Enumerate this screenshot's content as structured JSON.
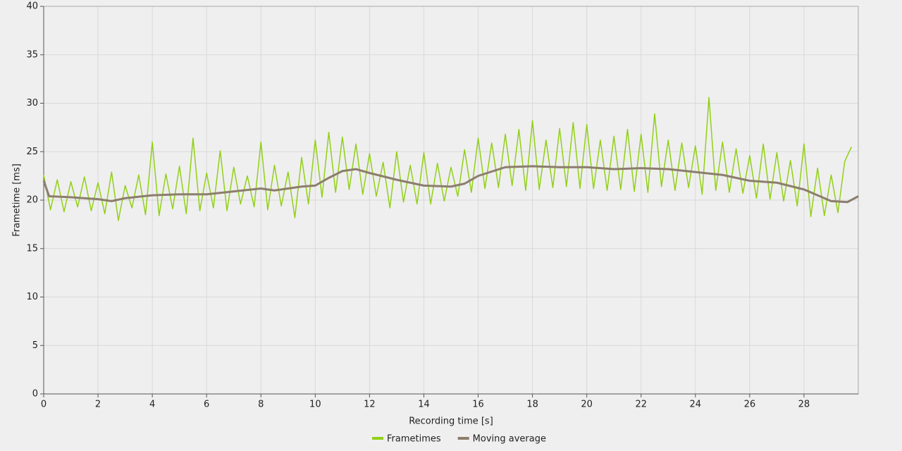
{
  "chart_data": {
    "type": "line",
    "x_label": "Recording time [s]",
    "y_label": "Frametime [ms]",
    "xlim": [
      0,
      30
    ],
    "xticks": [
      0,
      2,
      4,
      6,
      8,
      10,
      12,
      14,
      16,
      18,
      20,
      22,
      24,
      26,
      28
    ],
    "ylim": [
      0,
      40
    ],
    "yticks": [
      0,
      5,
      10,
      15,
      20,
      25,
      30,
      35,
      40
    ],
    "grid": true,
    "legend": "bottom",
    "series": [
      {
        "name": "Frametimes",
        "color": "#92d016",
        "width": 1.5,
        "x": [
          0,
          0.25,
          0.5,
          0.75,
          1,
          1.25,
          1.5,
          1.75,
          2,
          2.25,
          2.5,
          2.75,
          3,
          3.25,
          3.5,
          3.75,
          4,
          4.25,
          4.5,
          4.75,
          5,
          5.25,
          5.5,
          5.75,
          6,
          6.25,
          6.5,
          6.75,
          7,
          7.25,
          7.5,
          7.75,
          8,
          8.25,
          8.5,
          8.75,
          9,
          9.25,
          9.5,
          9.75,
          10,
          10.25,
          10.5,
          10.75,
          11,
          11.25,
          11.5,
          11.75,
          12,
          12.25,
          12.5,
          12.75,
          13,
          13.25,
          13.5,
          13.75,
          14,
          14.25,
          14.5,
          14.75,
          15,
          15.25,
          15.5,
          15.75,
          16,
          16.25,
          16.5,
          16.75,
          17,
          17.25,
          17.5,
          17.75,
          18,
          18.25,
          18.5,
          18.75,
          19,
          19.25,
          19.5,
          19.75,
          20,
          20.25,
          20.5,
          20.75,
          21,
          21.25,
          21.5,
          21.75,
          22,
          22.25,
          22.5,
          22.75,
          23,
          23.25,
          23.5,
          23.75,
          24,
          24.25,
          24.5,
          24.75,
          25,
          25.25,
          25.5,
          25.75,
          26,
          26.25,
          26.5,
          26.75,
          27,
          27.25,
          27.5,
          27.75,
          28,
          28.25,
          28.5,
          28.75,
          29,
          29.25,
          29.5,
          29.75
        ],
        "values": [
          22.6,
          19.0,
          22.1,
          18.8,
          21.9,
          19.3,
          22.4,
          18.9,
          21.8,
          18.6,
          22.9,
          17.9,
          21.5,
          19.2,
          22.6,
          18.5,
          26.0,
          18.4,
          22.7,
          19.1,
          23.5,
          18.6,
          26.4,
          18.9,
          22.8,
          19.2,
          25.1,
          18.9,
          23.4,
          19.6,
          22.5,
          19.3,
          26.0,
          19.0,
          23.6,
          19.4,
          22.9,
          18.2,
          24.4,
          19.6,
          26.2,
          20.3,
          27.0,
          20.8,
          26.5,
          21.1,
          25.8,
          20.6,
          24.8,
          20.4,
          23.9,
          19.2,
          25.0,
          19.8,
          23.6,
          19.6,
          24.9,
          19.6,
          23.8,
          19.9,
          23.4,
          20.4,
          25.2,
          20.8,
          26.4,
          21.2,
          25.9,
          21.3,
          26.8,
          21.5,
          27.3,
          21.0,
          28.2,
          21.1,
          26.2,
          21.3,
          27.4,
          21.4,
          28.0,
          21.2,
          27.8,
          21.2,
          26.2,
          21.0,
          26.6,
          21.1,
          27.3,
          20.9,
          26.8,
          20.8,
          28.9,
          21.4,
          26.2,
          21.0,
          25.9,
          21.3,
          25.6,
          20.6,
          30.6,
          21.0,
          26.0,
          20.8,
          25.3,
          20.7,
          24.6,
          20.2,
          25.8,
          20.1,
          24.9,
          19.9,
          24.1,
          19.4,
          25.8,
          18.3,
          23.3,
          18.4,
          22.6,
          18.7,
          24.0,
          25.5
        ]
      },
      {
        "name": "Moving average",
        "color": "#8c7d6e",
        "width": 3,
        "x": [
          0,
          0.2,
          1,
          2,
          2.5,
          3,
          4,
          5,
          6,
          7,
          8,
          8.5,
          9,
          9.5,
          10,
          10.5,
          11,
          11.5,
          12,
          13,
          14,
          15,
          15.5,
          16,
          17,
          18,
          19,
          20,
          21,
          22,
          23,
          24,
          25,
          26,
          27,
          28,
          29,
          29.6,
          30
        ],
        "values": [
          22,
          20.4,
          20.3,
          20.1,
          19.9,
          20.2,
          20.5,
          20.6,
          20.6,
          20.9,
          21.2,
          21,
          21.2,
          21.4,
          21.5,
          22.3,
          23,
          23.2,
          22.8,
          22.1,
          21.5,
          21.4,
          21.7,
          22.5,
          23.4,
          23.5,
          23.4,
          23.4,
          23.2,
          23.3,
          23.2,
          22.9,
          22.6,
          22,
          21.8,
          21.1,
          19.9,
          19.8,
          20.4
        ]
      }
    ]
  }
}
